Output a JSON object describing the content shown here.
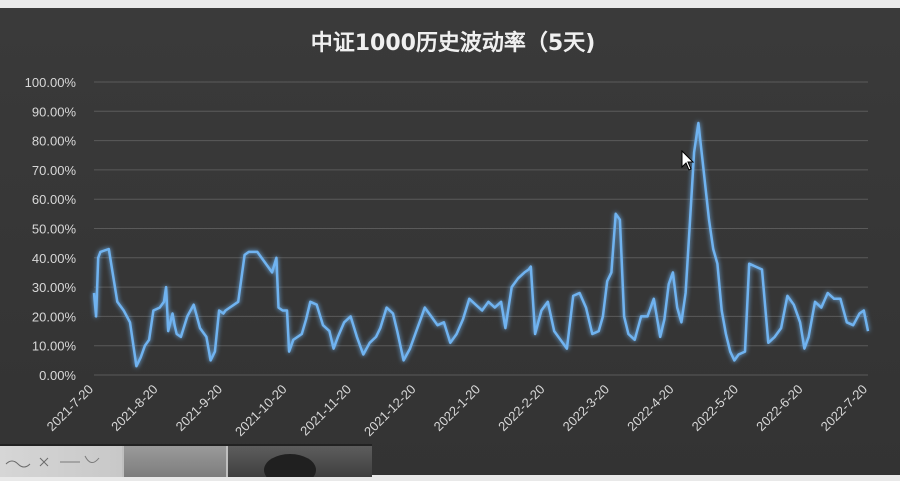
{
  "chart_data": {
    "type": "line",
    "title": "中证1000历史波动率（5天)",
    "xlabel": "",
    "ylabel": "",
    "ylim": [
      0,
      100
    ],
    "yticks": [
      "0.00%",
      "10.00%",
      "20.00%",
      "30.00%",
      "40.00%",
      "50.00%",
      "60.00%",
      "70.00%",
      "80.00%",
      "90.00%",
      "100.00%"
    ],
    "xticks": [
      "2021-7-20",
      "2021-8-20",
      "2021-9-20",
      "2021-10-20",
      "2021-11-20",
      "2021-12-20",
      "2022-1-20",
      "2022-2-20",
      "2022-3-20",
      "2022-4-20",
      "2022-5-20",
      "2022-6-20",
      "2022-7-20"
    ],
    "grid": true,
    "legend": "none",
    "series": [
      {
        "color": "#6fb3f0",
        "x": [
          "2021-07-20",
          "2021-07-21",
          "2021-07-22",
          "2021-07-23",
          "2021-07-27",
          "2021-07-31",
          "2021-08-03",
          "2021-08-06",
          "2021-08-09",
          "2021-08-11",
          "2021-08-13",
          "2021-08-15",
          "2021-08-17",
          "2021-08-20",
          "2021-08-22",
          "2021-08-23",
          "2021-08-24",
          "2021-08-26",
          "2021-08-27",
          "2021-08-28",
          "2021-08-30",
          "2021-09-02",
          "2021-09-05",
          "2021-09-08",
          "2021-09-11",
          "2021-09-13",
          "2021-09-15",
          "2021-09-17",
          "2021-09-19",
          "2021-09-20",
          "2021-09-22",
          "2021-09-26",
          "2021-09-29",
          "2021-10-01",
          "2021-10-03",
          "2021-10-05",
          "2021-10-12",
          "2021-10-14",
          "2021-10-15",
          "2021-10-17",
          "2021-10-19",
          "2021-10-20",
          "2021-10-22",
          "2021-10-26",
          "2021-10-28",
          "2021-10-30",
          "2021-11-02",
          "2021-11-05",
          "2021-11-08",
          "2021-11-10",
          "2021-11-12",
          "2021-11-15",
          "2021-11-18",
          "2021-11-21",
          "2021-11-24",
          "2021-11-27",
          "2021-11-30",
          "2021-12-02",
          "2021-12-05",
          "2021-12-08",
          "2021-12-10",
          "2021-12-13",
          "2021-12-16",
          "2021-12-19",
          "2021-12-21",
          "2021-12-23",
          "2021-12-26",
          "2021-12-29",
          "2022-01-01",
          "2022-01-04",
          "2022-01-07",
          "2022-01-10",
          "2022-01-13",
          "2022-01-16",
          "2022-01-19",
          "2022-01-22",
          "2022-01-25",
          "2022-01-28",
          "2022-01-30",
          "2022-02-02",
          "2022-02-05",
          "2022-02-08",
          "2022-02-10",
          "2022-02-11",
          "2022-02-13",
          "2022-02-16",
          "2022-02-19",
          "2022-02-22",
          "2022-02-25",
          "2022-02-28",
          "2022-03-03",
          "2022-03-06",
          "2022-03-09",
          "2022-03-12",
          "2022-03-15",
          "2022-03-17",
          "2022-03-19",
          "2022-03-21",
          "2022-03-23",
          "2022-03-25",
          "2022-03-27",
          "2022-03-29",
          "2022-04-01",
          "2022-04-04",
          "2022-04-07",
          "2022-04-10",
          "2022-04-13",
          "2022-04-15",
          "2022-04-17",
          "2022-04-19",
          "2022-04-21",
          "2022-04-23",
          "2022-04-25",
          "2022-04-27",
          "2022-04-29",
          "2022-05-01",
          "2022-05-03",
          "2022-05-06",
          "2022-05-08",
          "2022-05-10",
          "2022-05-12",
          "2022-05-14",
          "2022-05-16",
          "2022-05-18",
          "2022-05-20",
          "2022-05-23",
          "2022-05-25",
          "2022-05-28",
          "2022-05-31",
          "2022-06-03",
          "2022-06-06",
          "2022-06-09",
          "2022-06-12",
          "2022-06-15",
          "2022-06-18",
          "2022-06-20",
          "2022-06-22",
          "2022-06-25",
          "2022-06-28",
          "2022-07-01",
          "2022-07-04",
          "2022-07-07",
          "2022-07-10",
          "2022-07-13",
          "2022-07-16",
          "2022-07-18",
          "2022-07-20"
        ],
        "values": [
          28,
          20,
          40,
          42,
          43,
          25,
          22,
          18,
          3,
          6,
          10,
          12,
          22,
          23,
          25,
          30,
          15,
          21,
          17,
          14,
          13,
          20,
          24,
          16,
          13,
          5,
          8,
          22,
          21,
          22,
          23,
          25,
          41,
          42,
          42,
          42,
          35,
          40,
          23,
          22,
          22,
          8,
          12,
          14,
          19,
          25,
          24,
          17,
          15,
          9,
          13,
          18,
          20,
          13,
          7,
          11,
          13,
          16,
          23,
          21,
          15,
          5,
          9,
          15,
          19,
          23,
          20,
          17,
          18,
          11,
          14,
          19,
          26,
          24,
          22,
          25,
          23,
          25,
          16,
          30,
          33,
          35,
          36,
          37,
          14,
          22,
          25,
          15,
          12,
          9,
          27,
          28,
          23,
          14,
          15,
          20,
          32,
          35,
          55,
          53,
          20,
          14,
          12,
          20,
          20,
          26,
          13,
          19,
          31,
          35,
          23,
          18,
          28,
          52,
          76,
          86,
          73,
          53,
          43,
          38,
          22,
          14,
          8,
          5,
          7,
          8,
          38,
          37,
          36,
          11,
          13,
          16,
          27,
          24,
          18,
          9,
          13,
          25,
          23,
          28,
          26,
          26,
          18,
          17,
          21,
          22,
          15
        ]
      }
    ]
  }
}
